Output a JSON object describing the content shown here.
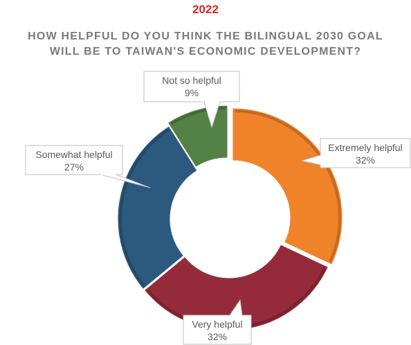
{
  "header": {
    "year": "2022",
    "title_line1": "HOW HELPFUL DO YOU THINK THE BILINGUAL 2030 GOAL",
    "title_line2": "WILL BE TO TAIWAN'S ECONOMIC DEVELOPMENT?"
  },
  "colors": {
    "year": "#e02424",
    "title": "#7a7a7a",
    "label_text": "#595959",
    "callout_border": "#bfbfbf"
  },
  "chart_data": {
    "type": "donut",
    "title": "HOW HELPFUL DO YOU THINK THE BILINGUAL 2030 GOAL WILL BE TO TAIWAN'S ECONOMIC DEVELOPMENT?",
    "subtitle": "2022",
    "unit": "%",
    "start_angle_deg": 0,
    "direction": "clockwise",
    "slices": [
      {
        "label": "Extremely helpful",
        "value": 32,
        "value_label": "32%",
        "color": "#f0822a"
      },
      {
        "label": "Very helpful",
        "value": 32,
        "value_label": "32%",
        "color": "#952b3a"
      },
      {
        "label": "Somewhat helpful",
        "value": 27,
        "value_label": "27%",
        "color": "#2c5a7e"
      },
      {
        "label": "Not so helpful",
        "value": 9,
        "value_label": "9%",
        "color": "#548145"
      }
    ],
    "legend": "none"
  }
}
